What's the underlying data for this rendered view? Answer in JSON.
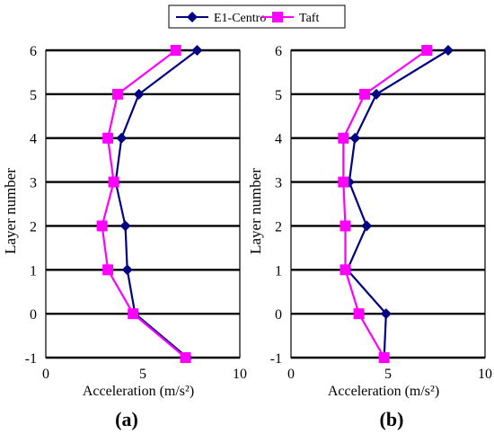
{
  "legend": {
    "entries": [
      {
        "name": "E1-Centro",
        "color": "#000080",
        "marker": "diamond"
      },
      {
        "name": "Taft",
        "color": "#FF00FF",
        "marker": "square"
      }
    ],
    "placement": "top-center"
  },
  "chart_data": [
    {
      "type": "line",
      "panel_label": "(a)",
      "xlabel": "Acceleration (m/s²)",
      "ylabel": "Layer number",
      "xlim": [
        0,
        10
      ],
      "ylim": [
        -1,
        6
      ],
      "xticks": [
        0,
        5,
        10
      ],
      "yticks": [
        -1,
        0,
        1,
        2,
        3,
        4,
        5,
        6
      ],
      "grid": "horizontal",
      "series": [
        {
          "name": "E1-Centro",
          "color": "#000080",
          "marker": "diamond",
          "points": [
            [
              7.3,
              -1
            ],
            [
              4.6,
              0
            ],
            [
              4.2,
              1
            ],
            [
              4.1,
              2
            ],
            [
              3.6,
              3
            ],
            [
              3.9,
              4
            ],
            [
              4.8,
              5
            ],
            [
              7.8,
              6
            ]
          ]
        },
        {
          "name": "Taft",
          "color": "#FF00FF",
          "marker": "square",
          "points": [
            [
              7.2,
              -1
            ],
            [
              4.5,
              0
            ],
            [
              3.2,
              1
            ],
            [
              2.9,
              2
            ],
            [
              3.5,
              3
            ],
            [
              3.2,
              4
            ],
            [
              3.7,
              5
            ],
            [
              6.7,
              6
            ]
          ]
        }
      ]
    },
    {
      "type": "line",
      "panel_label": "(b)",
      "xlabel": "Acceleration (m/s²)",
      "ylabel": "Layer number",
      "xlim": [
        0,
        10
      ],
      "ylim": [
        -1,
        6
      ],
      "xticks": [
        0,
        5,
        10
      ],
      "yticks": [
        -1,
        0,
        1,
        2,
        3,
        4,
        5,
        6
      ],
      "grid": "horizontal",
      "series": [
        {
          "name": "E1-Centro",
          "color": "#000080",
          "marker": "diamond",
          "points": [
            [
              4.8,
              -1
            ],
            [
              4.9,
              0
            ],
            [
              2.9,
              1
            ],
            [
              3.9,
              2
            ],
            [
              3.0,
              3
            ],
            [
              3.3,
              4
            ],
            [
              4.4,
              5
            ],
            [
              8.1,
              6
            ]
          ]
        },
        {
          "name": "Taft",
          "color": "#FF00FF",
          "marker": "square",
          "points": [
            [
              4.8,
              -1
            ],
            [
              3.5,
              0
            ],
            [
              2.8,
              1
            ],
            [
              2.8,
              2
            ],
            [
              2.7,
              3
            ],
            [
              2.7,
              4
            ],
            [
              3.8,
              5
            ],
            [
              7.0,
              6
            ]
          ]
        }
      ]
    }
  ]
}
